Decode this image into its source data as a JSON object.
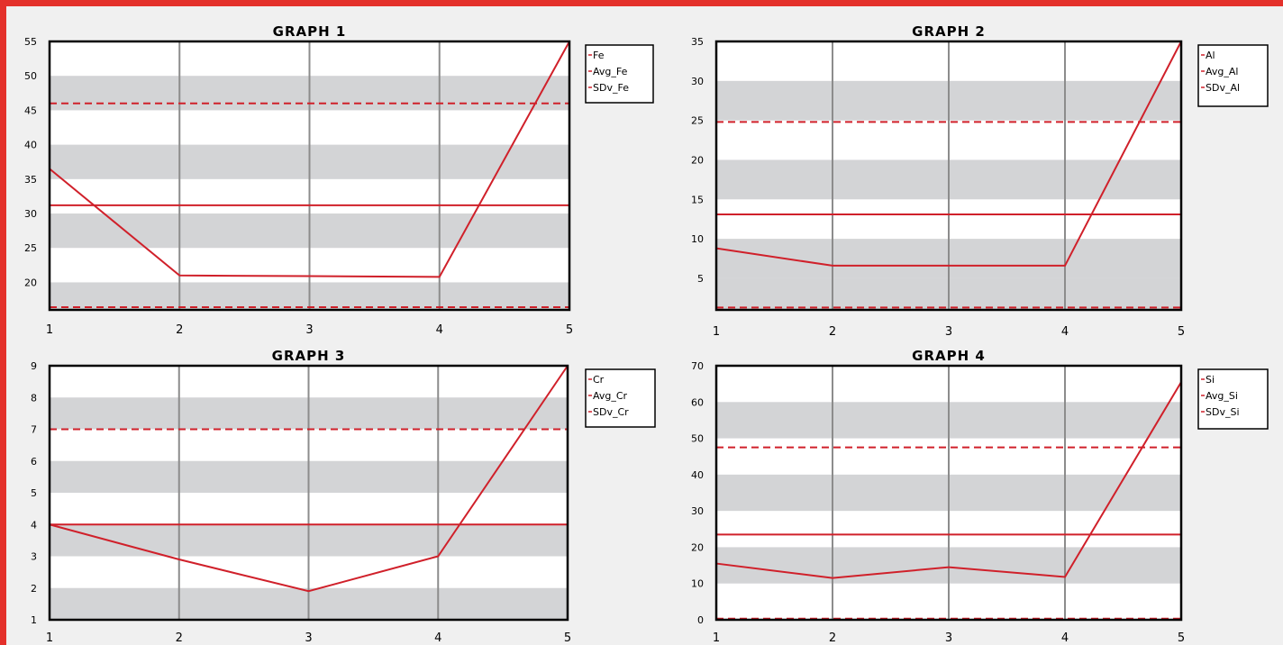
{
  "colors": {
    "accent": "#e4312b",
    "series": "#d0202a",
    "band": "#d3d4d6",
    "grid": "#8c8c8c"
  },
  "chart_data": [
    {
      "type": "line",
      "title": "GRAPH 1",
      "x": [
        1,
        2,
        3,
        4,
        5
      ],
      "yticks": [
        20,
        25,
        30,
        35,
        40,
        45,
        50,
        55
      ],
      "ylim": [
        16,
        55
      ],
      "series": [
        {
          "name": "Fe",
          "values": [
            36.5,
            21,
            20.9,
            20.8,
            55
          ]
        },
        {
          "name": "Avg_Fe",
          "values": [
            31.2,
            31.2,
            31.2,
            31.2,
            31.2
          ]
        },
        {
          "name": "SDv_Fe",
          "values": [
            [
              46,
              46,
              46,
              46,
              46
            ],
            [
              16.4,
              16.4,
              16.4,
              16.4,
              16.4
            ]
          ]
        }
      ],
      "legend": [
        "Fe",
        "Avg_Fe",
        "SDv_Fe"
      ],
      "grid": true,
      "legend_position": "right"
    },
    {
      "type": "line",
      "title": "GRAPH 2",
      "x": [
        1,
        2,
        3,
        4,
        5
      ],
      "yticks": [
        5,
        10,
        15,
        20,
        25,
        30,
        35
      ],
      "ylim": [
        1,
        35
      ],
      "series": [
        {
          "name": "Al",
          "values": [
            8.8,
            6.6,
            6.6,
            6.6,
            35
          ]
        },
        {
          "name": "Avg_Al",
          "values": [
            13.1,
            13.1,
            13.1,
            13.1,
            13.1
          ]
        },
        {
          "name": "SDv_Al",
          "values": [
            [
              24.8,
              24.8,
              24.8,
              24.8,
              24.8
            ],
            [
              1.3,
              1.3,
              1.3,
              1.3,
              1.3
            ]
          ]
        }
      ],
      "legend": [
        "Al",
        "Avg_Al",
        "SDv_Al"
      ],
      "grid": true,
      "legend_position": "right"
    },
    {
      "type": "line",
      "title": "GRAPH 3",
      "x": [
        1,
        2,
        3,
        4,
        5
      ],
      "yticks": [
        1,
        2,
        3,
        4,
        5,
        6,
        7,
        8,
        9
      ],
      "ylim": [
        1,
        9
      ],
      "series": [
        {
          "name": "Cr",
          "values": [
            4,
            2.9,
            1.9,
            3,
            9
          ]
        },
        {
          "name": "Avg_Cr",
          "values": [
            4,
            4,
            4,
            4,
            4
          ]
        },
        {
          "name": "SDv_Cr",
          "values": [
            [
              7,
              7,
              7,
              7,
              7
            ],
            [
              1,
              1,
              1,
              1,
              1
            ]
          ]
        }
      ],
      "legend": [
        "Cr",
        "Avg_Cr",
        "SDv_Cr"
      ],
      "grid": true,
      "legend_position": "right"
    },
    {
      "type": "line",
      "title": "GRAPH 4",
      "x": [
        1,
        2,
        3,
        4,
        5
      ],
      "yticks": [
        0,
        10,
        20,
        30,
        40,
        50,
        60,
        70
      ],
      "ylim": [
        0,
        70
      ],
      "series": [
        {
          "name": "Si",
          "values": [
            15.5,
            11.5,
            14.5,
            11.8,
            65.5
          ]
        },
        {
          "name": "Avg_Si",
          "values": [
            23.5,
            23.5,
            23.5,
            23.5,
            23.5
          ]
        },
        {
          "name": "SDv_Si",
          "values": [
            [
              47.5,
              47.5,
              47.5,
              47.5,
              47.5
            ],
            [
              0.3,
              0.3,
              0.3,
              0.3,
              0.3
            ]
          ]
        }
      ],
      "legend": [
        "Si",
        "Avg_Si",
        "SDv_Si"
      ],
      "grid": true,
      "legend_position": "right"
    }
  ]
}
